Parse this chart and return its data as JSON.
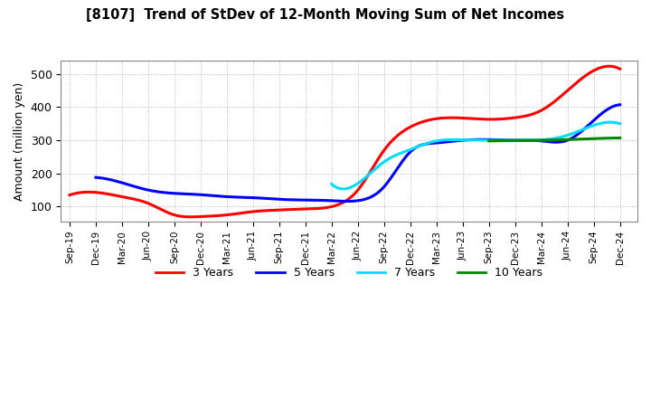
{
  "title": "[8107]  Trend of StDev of 12-Month Moving Sum of Net Incomes",
  "ylabel": "Amount (million yen)",
  "background_color": "#ffffff",
  "grid_color": "#aaaaaa",
  "ylim": [
    55,
    540
  ],
  "yticks": [
    100,
    200,
    300,
    400,
    500
  ],
  "series": {
    "3 Years": {
      "color": "#ff0000",
      "x": [
        0,
        3,
        6,
        9,
        12,
        15,
        18,
        21,
        24,
        27,
        30,
        33,
        36,
        39,
        42,
        45,
        48,
        51,
        54,
        57,
        60,
        63
      ],
      "values": [
        135,
        143,
        130,
        110,
        75,
        70,
        75,
        85,
        90,
        93,
        100,
        150,
        270,
        340,
        365,
        367,
        363,
        368,
        390,
        450,
        510,
        515
      ]
    },
    "5 Years": {
      "color": "#0000ff",
      "x": [
        3,
        6,
        9,
        12,
        15,
        18,
        21,
        24,
        27,
        30,
        33,
        36,
        39,
        42,
        45,
        48,
        51,
        54,
        57,
        60,
        63
      ],
      "values": [
        188,
        172,
        150,
        140,
        136,
        130,
        127,
        122,
        120,
        118,
        118,
        160,
        265,
        292,
        300,
        302,
        300,
        298,
        300,
        360,
        407
      ]
    },
    "7 Years": {
      "color": "#00ddff",
      "x": [
        30,
        33,
        36,
        39,
        42,
        45,
        48,
        51,
        54,
        57,
        60,
        63
      ],
      "values": [
        168,
        170,
        235,
        272,
        298,
        301,
        300,
        300,
        301,
        315,
        345,
        350
      ]
    },
    "10 Years": {
      "color": "#008800",
      "x": [
        48,
        51,
        54,
        57,
        60,
        63
      ],
      "values": [
        298,
        299,
        300,
        302,
        305,
        307
      ]
    }
  },
  "xtick_positions": [
    0,
    3,
    6,
    9,
    12,
    15,
    18,
    21,
    24,
    27,
    30,
    33,
    36,
    39,
    42,
    45,
    48,
    51,
    54,
    57,
    60,
    63
  ],
  "xtick_labels": [
    "Sep-19",
    "Dec-19",
    "Mar-20",
    "Jun-20",
    "Sep-20",
    "Dec-20",
    "Mar-21",
    "Jun-21",
    "Sep-21",
    "Dec-21",
    "Mar-22",
    "Jun-22",
    "Sep-22",
    "Dec-22",
    "Mar-23",
    "Jun-23",
    "Sep-23",
    "Dec-23",
    "Mar-24",
    "Jun-24",
    "Sep-24",
    "Dec-24"
  ],
  "legend_entries": [
    "3 Years",
    "5 Years",
    "7 Years",
    "10 Years"
  ],
  "legend_colors": [
    "#ff0000",
    "#0000ff",
    "#00ddff",
    "#008800"
  ]
}
